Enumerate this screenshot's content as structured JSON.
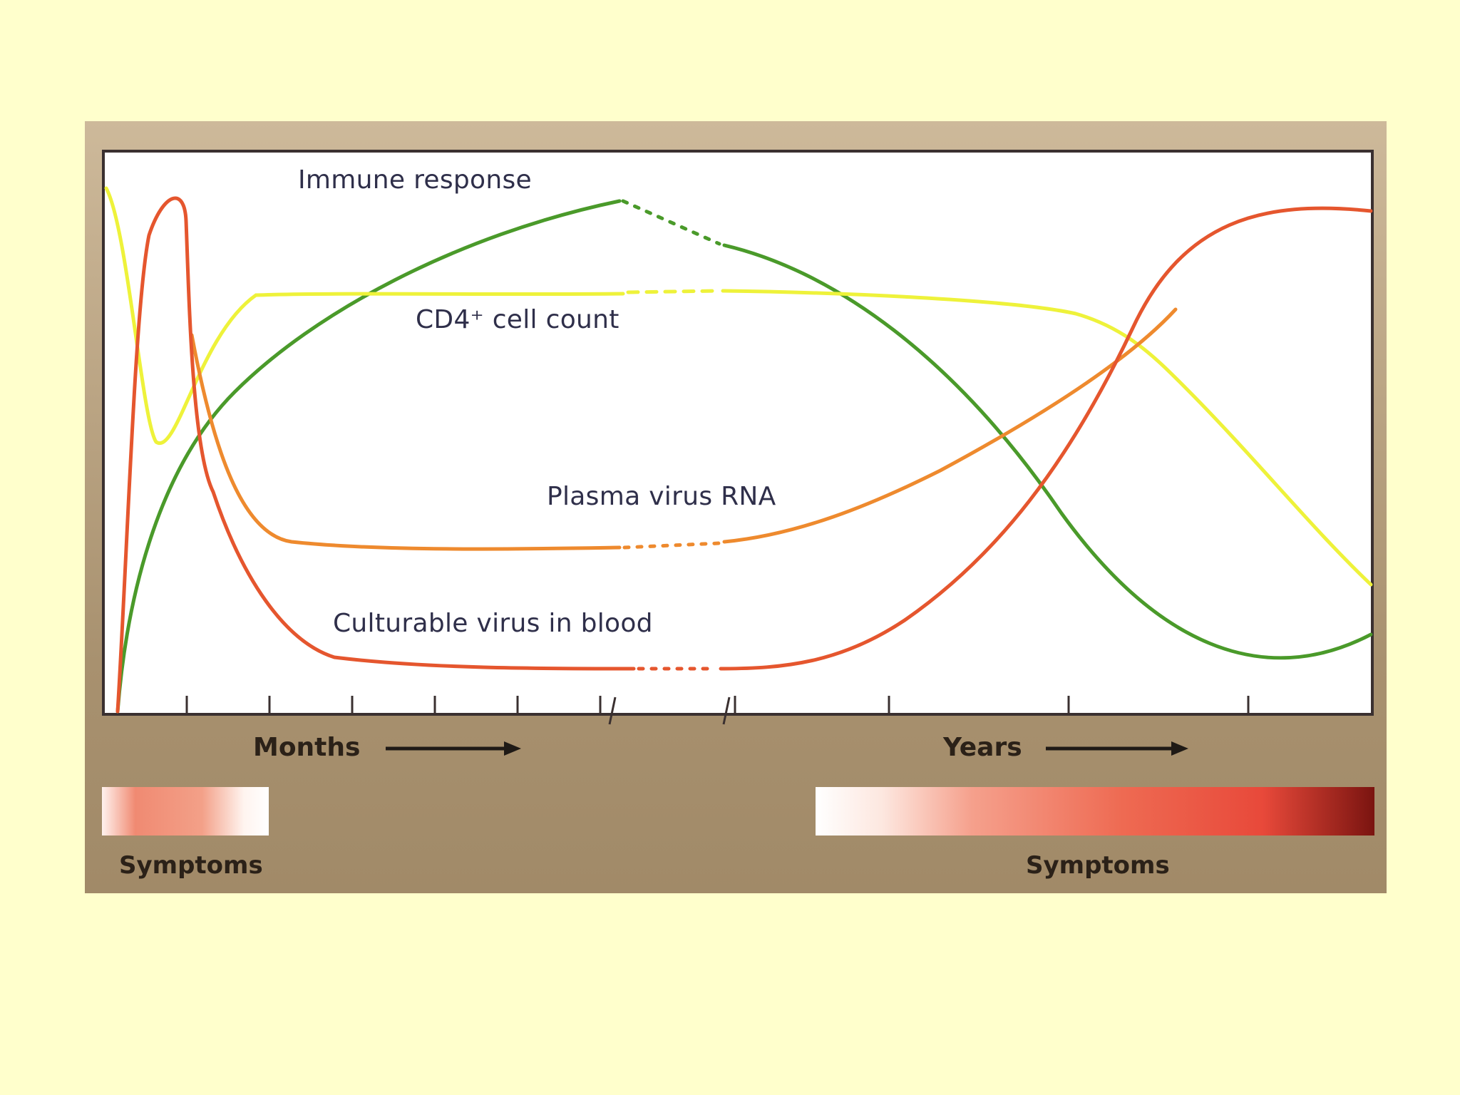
{
  "chart_data": {
    "type": "line",
    "title": "",
    "xlabel": "",
    "ylabel": "",
    "x_segments": [
      {
        "label": "Months",
        "arrow": "right"
      },
      {
        "label": "Years",
        "arrow": "right"
      }
    ],
    "x_break": true,
    "grid": false,
    "series": [
      {
        "name": "Immune response",
        "color": "#4a9a2a",
        "shape": "rises steeply from zero, peaks mid-course, then declines steadily into years"
      },
      {
        "name": "CD4⁺ cell count",
        "color": "#eef23a",
        "shape": "dips early, recovers to a plateau, then falls sharply late"
      },
      {
        "name": "Plasma virus RNA",
        "color": "#ee8a2e",
        "shape": "early spike, drops to low plateau, rises gradually in years"
      },
      {
        "name": "Culturable virus in blood",
        "color": "#e5562e",
        "shape": "early spike, drops to very low plateau, rises steeply in years"
      }
    ],
    "symptom_bars": [
      {
        "label": "Symptoms",
        "phase": "early"
      },
      {
        "label": "Symptoms",
        "phase": "late"
      }
    ]
  }
}
